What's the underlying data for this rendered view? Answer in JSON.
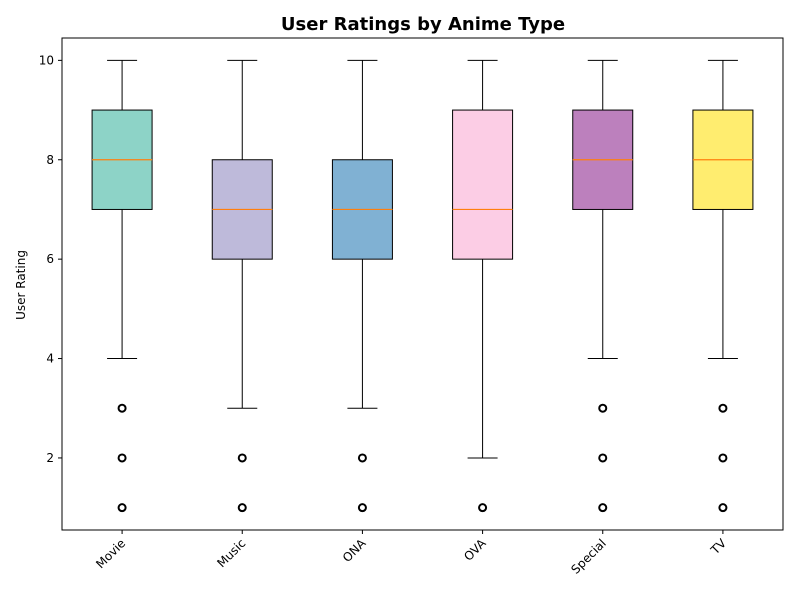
{
  "chart_data": {
    "type": "boxplot",
    "title": "User Ratings by Anime Type",
    "xlabel": "",
    "ylabel": "User Rating",
    "ylim": [
      0.55,
      10.45
    ],
    "yticks": [
      2,
      4,
      6,
      8,
      10
    ],
    "grid": false,
    "categories": [
      "Movie",
      "Music",
      "ONA",
      "OVA",
      "Special",
      "TV"
    ],
    "colors": [
      "#8dd3c7",
      "#bebada",
      "#80b1d3",
      "#fccde5",
      "#bc80bd",
      "#ffed6f"
    ],
    "median_color": "#ff7f0e",
    "boxes": [
      {
        "whisker_low": 4,
        "q1": 7,
        "median": 8,
        "q3": 9,
        "whisker_high": 10,
        "outliers": [
          1,
          2,
          3
        ]
      },
      {
        "whisker_low": 3,
        "q1": 6,
        "median": 7,
        "q3": 8,
        "whisker_high": 10,
        "outliers": [
          1,
          2
        ]
      },
      {
        "whisker_low": 3,
        "q1": 6,
        "median": 7,
        "q3": 8,
        "whisker_high": 10,
        "outliers": [
          1,
          2
        ]
      },
      {
        "whisker_low": 2,
        "q1": 6,
        "median": 7,
        "q3": 9,
        "whisker_high": 10,
        "outliers": [
          1
        ]
      },
      {
        "whisker_low": 4,
        "q1": 7,
        "median": 8,
        "q3": 9,
        "whisker_high": 10,
        "outliers": [
          1,
          2,
          3
        ]
      },
      {
        "whisker_low": 4,
        "q1": 7,
        "median": 8,
        "q3": 9,
        "whisker_high": 10,
        "outliers": [
          1,
          2,
          3
        ]
      }
    ]
  }
}
